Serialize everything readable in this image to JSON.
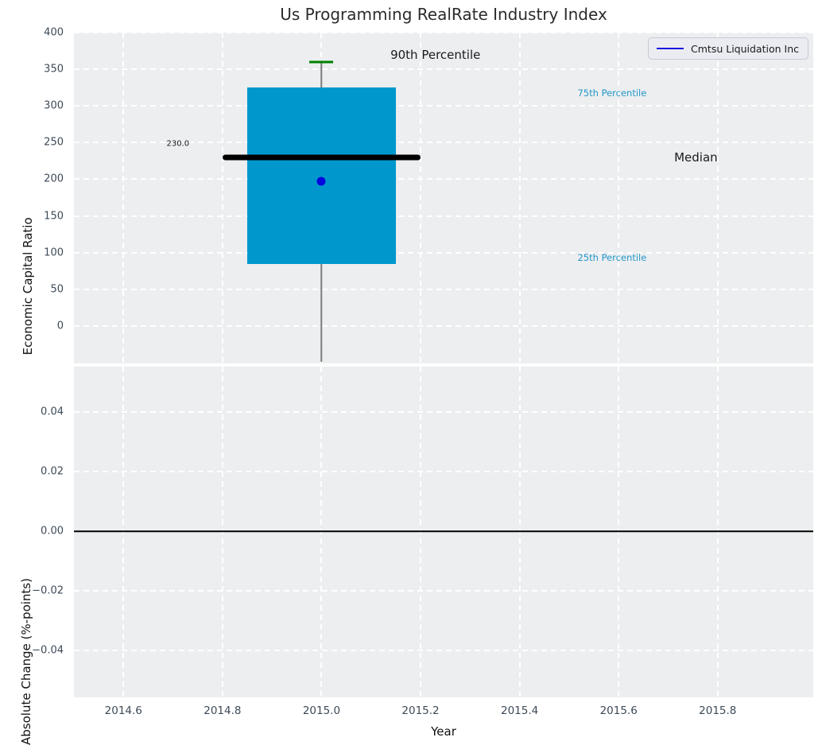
{
  "title": "Us Programming RealRate Industry Index",
  "legend": {
    "label": "Cmtsu Liquidation Inc",
    "line_color": "#1515dd"
  },
  "colors": {
    "axes_background": "#eceef0",
    "grid": "#ffffff",
    "box_fill": "#0098cc",
    "median_line": "#000000",
    "percentile_cap": "#008000",
    "whisker": "#7a7a7a",
    "company_point": "#0404dd",
    "tick_label": "#3d4a57",
    "percentile_text": "#2496c7",
    "annotation_text": "#1a1a1a"
  },
  "x_axis": {
    "label": "Year",
    "xlim": [
      2014.5,
      2015.993
    ],
    "ticks": [
      2014.6,
      2014.8,
      2015.0,
      2015.2,
      2015.4,
      2015.6,
      2015.8
    ],
    "tick_labels": [
      "2014.6",
      "2014.8",
      "2015.0",
      "2015.2",
      "2015.4",
      "2015.6",
      "2015.8"
    ]
  },
  "chart_data": {
    "type": "boxplot+point",
    "top": {
      "ylabel": "Economic Capital Ratio",
      "ylim": [
        -51,
        400
      ],
      "yticks": [
        0,
        50,
        100,
        150,
        200,
        250,
        300,
        350,
        400
      ],
      "ytick_labels": [
        "0",
        "50",
        "100",
        "150",
        "200",
        "250",
        "300",
        "350",
        "400"
      ],
      "box": {
        "x_center": 2015.0,
        "x_left": 2014.85,
        "x_right": 2015.15,
        "q1": 85,
        "q3": 325,
        "median": 230,
        "median_line_x": [
          2014.8,
          2015.2
        ],
        "p90": 360,
        "p90_cap_halfwidth_years": 0.024,
        "whisker_low_clip": -49
      },
      "company_point": {
        "x": 2015.0,
        "y": 197,
        "name": "Cmtsu Liquidation Inc"
      },
      "annotations": [
        {
          "id": "annotation-90th-percentile",
          "text": "90th Percentile",
          "x": 2015.23,
          "y": 370,
          "align": "center",
          "color": "#1a1a1a",
          "size": 15
        },
        {
          "id": "annotation-median",
          "text": "Median",
          "x": 2015.756,
          "y": 230,
          "align": "center",
          "color": "#1a1a1a",
          "size": 15
        },
        {
          "id": "annotation-median-value",
          "text": "230.0",
          "x": 2014.71,
          "y": 248,
          "align": "center",
          "color": "#1a1a1a",
          "size": 10
        },
        {
          "id": "annotation-75th-percentile",
          "text": "75th Percentile",
          "x": 2015.517,
          "y": 318,
          "align": "left",
          "color": "#2496c7",
          "size": 11.5
        },
        {
          "id": "annotation-25th-percentile",
          "text": "25th Percentile",
          "x": 2015.517,
          "y": 93,
          "align": "left",
          "color": "#2496c7",
          "size": 11.5
        }
      ]
    },
    "bottom": {
      "ylabel": "Absolute Change (%-points)",
      "ylim": [
        -0.0557,
        0.0552
      ],
      "yticks": [
        0.04,
        0.02,
        0.0,
        -0.02,
        -0.04
      ],
      "ytick_labels": [
        "0.04",
        "0.02",
        "0.00",
        "−0.02",
        "−0.04"
      ],
      "zero_line_y": 0.0
    }
  }
}
